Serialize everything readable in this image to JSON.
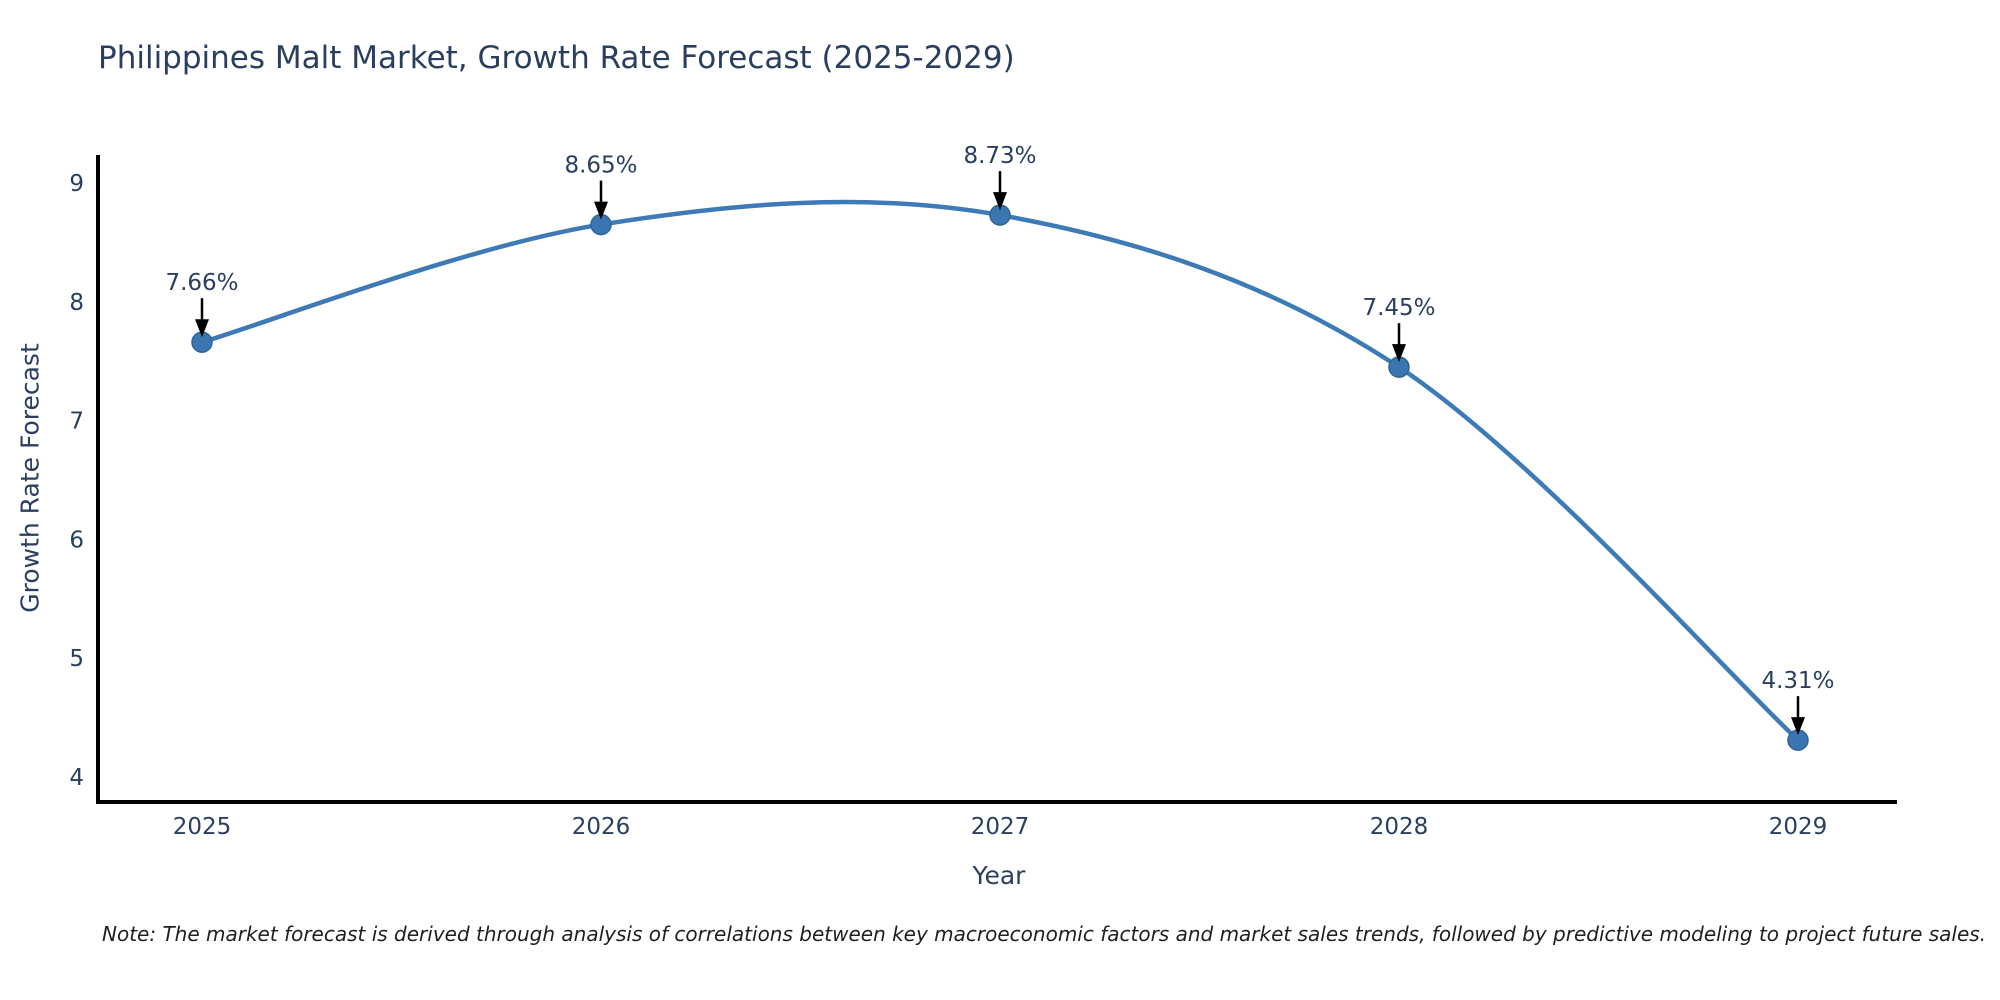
{
  "note": "Note: The market forecast is derived through analysis of correlations between key macroeconomic factors and market sales trends, followed by predictive modeling to project future sales.",
  "chart_data": {
    "type": "line",
    "title": "Philippines Malt Market, Growth Rate Forecast (2025-2029)",
    "xlabel": "Year",
    "ylabel": "Growth Rate Forecast",
    "categories": [
      "2025",
      "2026",
      "2027",
      "2028",
      "2029"
    ],
    "values": [
      7.66,
      8.65,
      8.73,
      7.45,
      4.31
    ],
    "point_labels": [
      "7.66%",
      "8.65%",
      "8.73%",
      "7.45%",
      "4.31%"
    ],
    "y_ticks": [
      4,
      5,
      6,
      7,
      8,
      9
    ],
    "ylim": [
      3.79,
      9.22
    ],
    "grid": false,
    "legend": "none",
    "line_shape": "spline",
    "line_color": "#3d7ab6",
    "marker_color": "#3a76b2",
    "marker_edge_color": "#2e6496",
    "axis_color": "#000000",
    "annotation_arrow_color": "#000000",
    "text_color": "#2a3f5f"
  }
}
